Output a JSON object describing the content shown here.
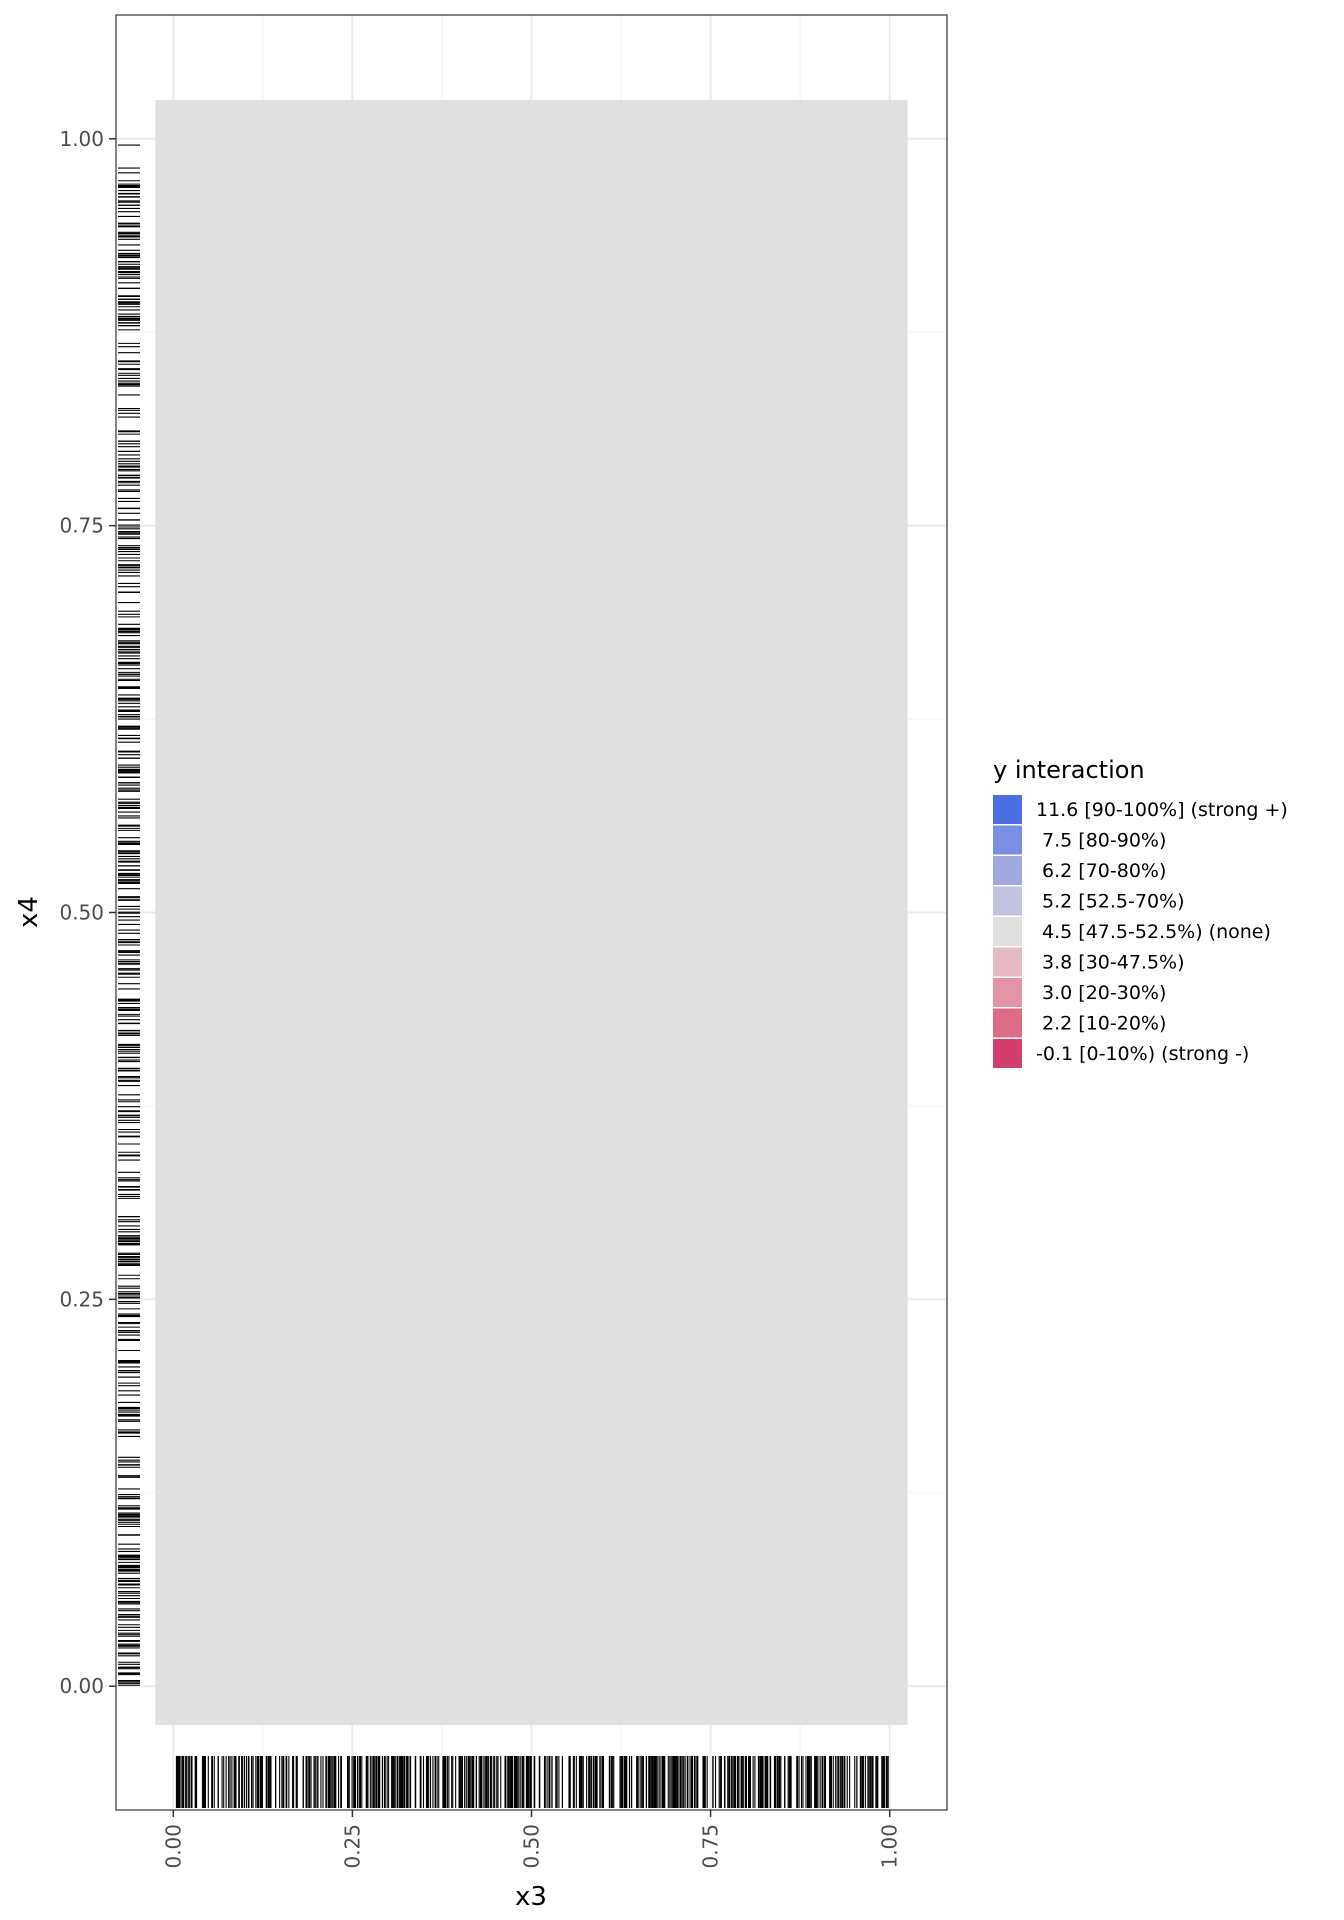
{
  "chart_data": {
    "type": "heatmap",
    "xlabel": "x3",
    "ylabel": "x4",
    "xlim": [
      -0.08,
      1.08
    ],
    "ylim": [
      -0.08,
      1.08
    ],
    "x_ticks": [
      "0.00",
      "0.25",
      "0.50",
      "0.75",
      "1.00"
    ],
    "x_tick_values": [
      0,
      0.25,
      0.5,
      0.75,
      1
    ],
    "y_ticks": [
      "0.00",
      "0.25",
      "0.50",
      "0.75",
      "1.00"
    ],
    "y_tick_values": [
      0,
      0.25,
      0.5,
      0.75,
      1
    ],
    "grid": true,
    "tile": {
      "x_range": [
        -0.025,
        1.025
      ],
      "y_range": [
        -0.025,
        1.025
      ],
      "level": "4.5 [47.5-52.5%) (none)",
      "color": "#e0e0e0"
    },
    "rug_x": "dense rug marks along x3 from 0.00 to 1.00",
    "rug_y": "dense rug marks along x4 from 0.00 to 1.00",
    "legend": {
      "title": "y interaction",
      "position": "right",
      "items": [
        {
          "label": "11.6 [90-100%] (strong +)",
          "color": "#4a6fe3"
        },
        {
          "label": " 7.5 [80-90%)",
          "color": "#7b8fe2"
        },
        {
          "label": " 6.2 [70-80%)",
          "color": "#a0a8df"
        },
        {
          "label": " 5.2 [52.5-70%)",
          "color": "#c1c4e1"
        },
        {
          "label": " 4.5 [47.5-52.5%) (none)",
          "color": "#e0e0e0"
        },
        {
          "label": " 3.8 [30-47.5%)",
          "color": "#e6bac3"
        },
        {
          "label": " 3.0 [20-30%)",
          "color": "#e394a7"
        },
        {
          "label": " 2.2 [10-20%)",
          "color": "#dc6c86"
        },
        {
          "label": "-0.1 [0-10%) (strong -)",
          "color": "#d33f6a"
        }
      ]
    }
  }
}
